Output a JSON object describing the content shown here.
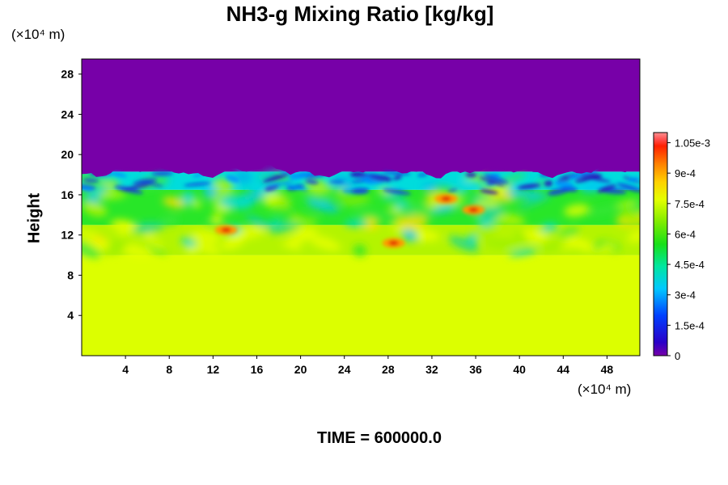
{
  "chart_data": {
    "type": "heatmap",
    "title": "NH3-g Mixing Ratio [kg/kg]",
    "ylabel": "Height",
    "y_unit": "(×10⁴ m)",
    "x_unit": "(×10⁴ m)",
    "xlim": [
      0,
      51
    ],
    "ylim": [
      0,
      29.5
    ],
    "x_ticks": [
      4,
      8,
      12,
      16,
      20,
      24,
      28,
      32,
      36,
      40,
      44,
      48
    ],
    "y_ticks": [
      4,
      8,
      12,
      16,
      20,
      24,
      28
    ],
    "grid": false,
    "colorbar": {
      "position": "right",
      "range": [
        0,
        0.0011
      ],
      "tick_values": [
        0,
        0.00015,
        0.0003,
        0.00045,
        0.0006,
        0.00075,
        0.0009,
        0.00105
      ],
      "tick_labels": [
        "0",
        "1.5e-4",
        "3e-4",
        "4.5e-4",
        "6e-4",
        "7.5e-4",
        "9e-4",
        "1.05e-3"
      ]
    },
    "regions": [
      {
        "y_range": [
          0,
          10
        ],
        "value": 0.00082,
        "color": "#dcff00"
      },
      {
        "y_range": [
          10,
          13
        ],
        "value": 0.0007,
        "color": "#b4f400"
      },
      {
        "y_range": [
          13,
          16.5
        ],
        "value": 0.00055,
        "color": "#28e628"
      },
      {
        "y_range": [
          16.5,
          18.3
        ],
        "value": 0.00035,
        "color": "#00dcdc"
      },
      {
        "y_range": [
          18.3,
          29.5
        ],
        "value": 0.0,
        "color": "#7700a8"
      }
    ],
    "hotspots": [
      {
        "x": 13.2,
        "y": 12.5,
        "value": 0.00095
      },
      {
        "x": 28.5,
        "y": 11.2,
        "value": 0.0009
      },
      {
        "x": 33.3,
        "y": 15.6,
        "value": 0.00092
      },
      {
        "x": 35.8,
        "y": 14.5,
        "value": 0.0009
      }
    ],
    "colors": {
      "top": "#7700a8",
      "bottom": "#dcff00"
    }
  },
  "footer": "TIME = 600000.0"
}
